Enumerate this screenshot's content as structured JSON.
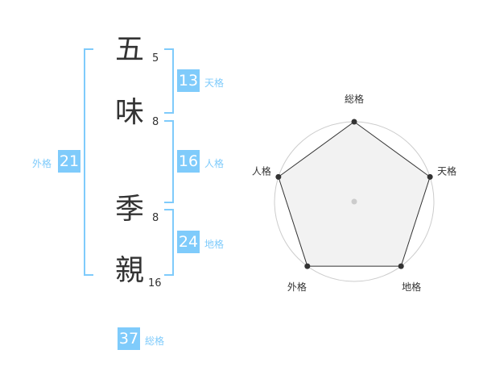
{
  "name": {
    "characters": [
      {
        "char": "五",
        "strokes": "5"
      },
      {
        "char": "味",
        "strokes": "8"
      },
      {
        "char": "季",
        "strokes": "8"
      },
      {
        "char": "親",
        "strokes": "16"
      }
    ]
  },
  "fortunes": {
    "tenkaku": {
      "label": "天格",
      "value": "13"
    },
    "jinkaku": {
      "label": "人格",
      "value": "16"
    },
    "chikaku": {
      "label": "地格",
      "value": "24"
    },
    "gaikaku": {
      "label": "外格",
      "value": "21"
    },
    "soukaku": {
      "label": "総格",
      "value": "37"
    }
  },
  "colors": {
    "accent": "#7fcbfb",
    "text": "#333333",
    "radar_fill": "#f2f2f2"
  },
  "chart_data": {
    "type": "radar",
    "axes": [
      "総格",
      "天格",
      "地格",
      "外格",
      "人格"
    ],
    "values": [
      5,
      5,
      5,
      5,
      5
    ],
    "range": [
      0,
      5
    ],
    "rings": 5
  }
}
